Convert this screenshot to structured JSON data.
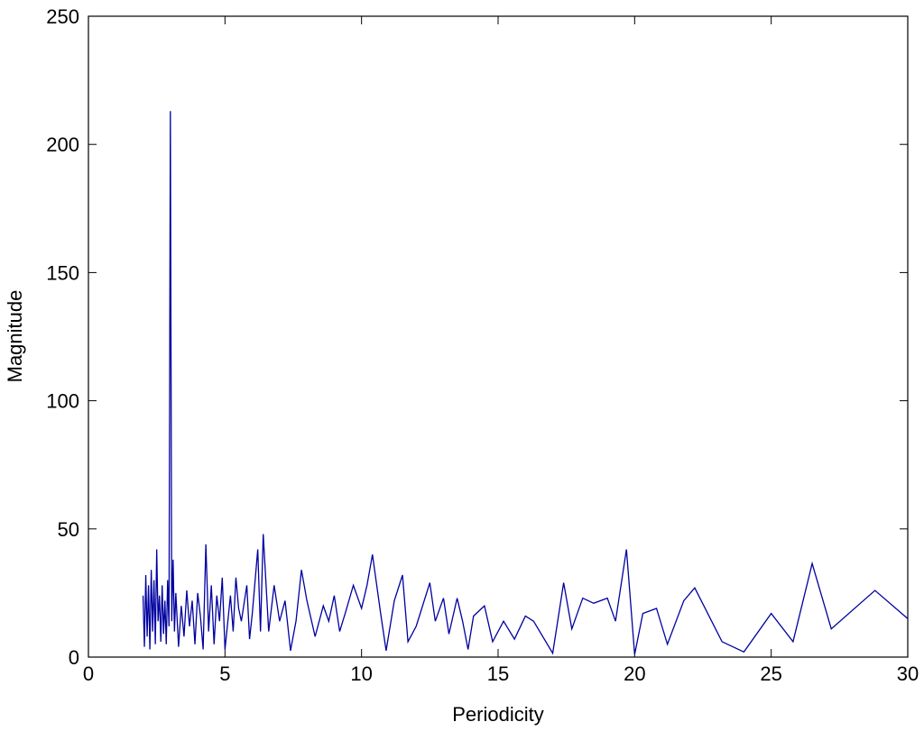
{
  "chart_data": {
    "type": "line",
    "xlabel": "Periodicity",
    "ylabel": "Magnitude",
    "x": [
      2.0,
      2.05,
      2.1,
      2.15,
      2.2,
      2.25,
      2.3,
      2.35,
      2.4,
      2.45,
      2.5,
      2.55,
      2.6,
      2.65,
      2.7,
      2.75,
      2.8,
      2.85,
      2.9,
      2.95,
      3.0,
      3.05,
      3.1,
      3.15,
      3.2,
      3.3,
      3.4,
      3.5,
      3.6,
      3.7,
      3.8,
      3.9,
      4.0,
      4.1,
      4.2,
      4.3,
      4.4,
      4.5,
      4.6,
      4.7,
      4.8,
      4.9,
      5.0,
      5.2,
      5.3,
      5.4,
      5.5,
      5.6,
      5.8,
      5.9,
      6.0,
      6.2,
      6.3,
      6.4,
      6.6,
      6.8,
      7.0,
      7.2,
      7.4,
      7.6,
      7.8,
      8.0,
      8.3,
      8.6,
      8.8,
      9.0,
      9.2,
      9.4,
      9.7,
      10.0,
      10.2,
      10.4,
      10.7,
      10.9,
      11.2,
      11.5,
      11.7,
      12.0,
      12.5,
      12.7,
      13.0,
      13.2,
      13.5,
      13.7,
      13.9,
      14.1,
      14.5,
      14.8,
      15.2,
      15.6,
      16.0,
      16.3,
      17.0,
      17.4,
      17.7,
      18.1,
      18.5,
      19.0,
      19.3,
      19.7,
      20.0,
      20.3,
      20.8,
      21.2,
      21.8,
      22.2,
      23.2,
      24.0,
      25.0,
      25.8,
      26.5,
      27.2,
      28.8,
      30.0
    ],
    "series": [
      {
        "color": "#0000a0",
        "values": [
          24,
          4,
          32,
          8,
          28,
          3,
          34,
          10,
          30,
          5,
          42,
          14,
          24,
          6,
          28,
          9,
          22,
          5,
          30,
          12,
          213,
          14,
          38,
          10,
          25,
          4,
          20,
          8,
          26,
          12,
          22,
          5,
          25,
          16,
          3,
          44,
          10,
          28,
          5,
          24,
          14,
          31,
          3,
          24,
          10,
          31,
          19,
          14,
          28,
          7,
          17,
          42,
          10,
          48,
          10,
          28,
          14,
          22,
          2.5,
          14,
          34,
          22,
          8,
          20,
          14,
          24,
          10,
          17,
          28,
          19,
          28,
          40,
          17,
          2.5,
          22,
          32,
          6,
          12,
          29,
          14,
          23,
          9,
          23,
          14,
          3,
          16,
          20,
          6,
          14,
          7,
          16,
          14,
          1.5,
          29,
          11,
          23,
          21,
          23,
          14,
          42,
          1,
          17,
          19,
          5,
          22,
          27,
          6,
          2,
          17,
          6,
          36.5,
          11,
          26,
          15
        ]
      }
    ],
    "xlim": [
      0,
      30
    ],
    "xticks": [
      0,
      5,
      10,
      15,
      20,
      25,
      30
    ],
    "ylim": [
      0,
      250
    ],
    "yticks": [
      0,
      50,
      100,
      150,
      200,
      250
    ]
  }
}
